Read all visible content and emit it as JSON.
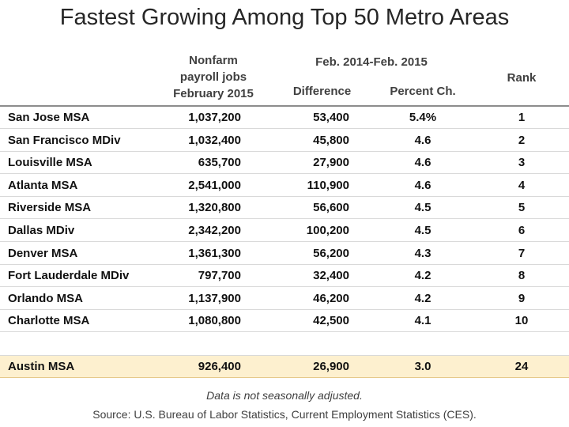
{
  "title": "Fastest Growing Among Top 50 Metro Areas",
  "headers": {
    "jobs_line1": "Nonfarm",
    "jobs_line2": "payroll jobs",
    "jobs_line3": "February 2015",
    "period": "Feb. 2014-Feb. 2015",
    "difference": "Difference",
    "percent": "Percent Ch.",
    "rank": "Rank"
  },
  "rows": [
    {
      "area": "San Jose MSA",
      "jobs": "1,037,200",
      "diff": "53,400",
      "pct": "5.4%",
      "rank": "1"
    },
    {
      "area": "San Francisco MDiv",
      "jobs": "1,032,400",
      "diff": "45,800",
      "pct": "4.6",
      "rank": "2"
    },
    {
      "area": "Louisville MSA",
      "jobs": "635,700",
      "diff": "27,900",
      "pct": "4.6",
      "rank": "3"
    },
    {
      "area": "Atlanta MSA",
      "jobs": "2,541,000",
      "diff": "110,900",
      "pct": "4.6",
      "rank": "4"
    },
    {
      "area": "Riverside MSA",
      "jobs": "1,320,800",
      "diff": "56,600",
      "pct": "4.5",
      "rank": "5"
    },
    {
      "area": "Dallas MDiv",
      "jobs": "2,342,200",
      "diff": "100,200",
      "pct": "4.5",
      "rank": "6"
    },
    {
      "area": "Denver MSA",
      "jobs": "1,361,300",
      "diff": "56,200",
      "pct": "4.3",
      "rank": "7"
    },
    {
      "area": "Fort Lauderdale MDiv",
      "jobs": "797,700",
      "diff": "32,400",
      "pct": "4.2",
      "rank": "8"
    },
    {
      "area": "Orlando MSA",
      "jobs": "1,137,900",
      "diff": "46,200",
      "pct": "4.2",
      "rank": "9"
    },
    {
      "area": "Charlotte MSA",
      "jobs": "1,080,800",
      "diff": "42,500",
      "pct": "4.1",
      "rank": "10"
    }
  ],
  "highlight": {
    "area": "Austin MSA",
    "jobs": "926,400",
    "diff": "26,900",
    "pct": "3.0",
    "rank": "24"
  },
  "note": "Data is not seasonally adjusted.",
  "source": "Source:  U.S. Bureau of Labor Statistics, Current Employment Statistics (CES).",
  "colors": {
    "highlight_bg": "#fdf0cf",
    "rule": "#8c8c8c",
    "row_separator": "#d9d9d9"
  }
}
